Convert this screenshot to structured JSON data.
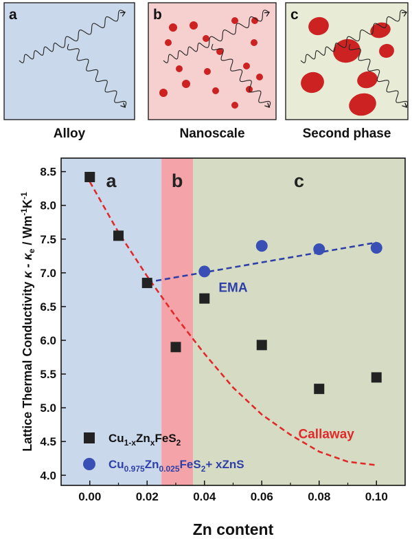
{
  "schematic": {
    "panels": [
      {
        "letter": "a",
        "caption": "Alloy",
        "background": "#c9d8ea"
      },
      {
        "letter": "b",
        "caption": "Nanoscale",
        "background": "#f6cfcf"
      },
      {
        "letter": "c",
        "caption": "Second phase",
        "background": "#e8ecd6"
      }
    ],
    "particle_color": "#cc2222"
  },
  "chart_data": {
    "type": "scatter",
    "xlabel": "Zn content",
    "ylabel_parts": {
      "a": "Lattice Thermal Conductivity ",
      "b": "κ - κ",
      "b_sub": "e",
      "c": " / Wm",
      "c_sup": "-1",
      "d": "K",
      "d_sup": "-1"
    },
    "xlim": [
      -0.01,
      0.11
    ],
    "ylim": [
      3.85,
      8.7
    ],
    "xticks": [
      "0.00",
      "0.02",
      "0.04",
      "0.06",
      "0.08",
      "0.10"
    ],
    "yticks": [
      "4.0",
      "4.5",
      "5.0",
      "5.5",
      "6.0",
      "6.5",
      "7.0",
      "7.5",
      "8.0",
      "8.5"
    ],
    "regions": [
      {
        "label": "a",
        "x_range": [
          -0.01,
          0.025
        ],
        "color": "#c9d8ea"
      },
      {
        "label": "b",
        "x_range": [
          0.025,
          0.036
        ],
        "color": "#f4a3a8"
      },
      {
        "label": "c",
        "x_range": [
          0.036,
          0.11
        ],
        "color": "#d6dcc4"
      }
    ],
    "series": [
      {
        "name_parts": [
          "Cu",
          "1-x",
          "Zn",
          "x",
          "FeS",
          "2",
          ""
        ],
        "marker": "square",
        "color": "#222222",
        "text_color": "#111111",
        "x": [
          0.0,
          0.01,
          0.02,
          0.03,
          0.04,
          0.06,
          0.08,
          0.1
        ],
        "y": [
          8.42,
          7.55,
          6.85,
          5.9,
          6.62,
          5.93,
          5.28,
          5.45
        ]
      },
      {
        "name_parts": [
          "Cu",
          "0.975",
          "Zn",
          "0.025",
          "FeS",
          "2",
          "+ xZnS"
        ],
        "marker": "circle",
        "color": "#3a4fb5",
        "text_color": "#2e3fa8",
        "x": [
          0.04,
          0.06,
          0.08,
          0.1
        ],
        "y": [
          7.02,
          7.4,
          7.35,
          7.37
        ]
      }
    ],
    "fits": [
      {
        "label": "EMA",
        "color": "#2e3fa8",
        "x": [
          0.02,
          0.1
        ],
        "y": [
          6.86,
          7.45
        ]
      },
      {
        "label": "Callaway",
        "color": "#e02a2a",
        "x": [
          0.0,
          0.01,
          0.02,
          0.03,
          0.04,
          0.05,
          0.06,
          0.07,
          0.08,
          0.09,
          0.1
        ],
        "y": [
          8.35,
          7.6,
          6.95,
          6.35,
          5.8,
          5.3,
          4.9,
          4.6,
          4.35,
          4.2,
          4.15
        ]
      }
    ]
  }
}
